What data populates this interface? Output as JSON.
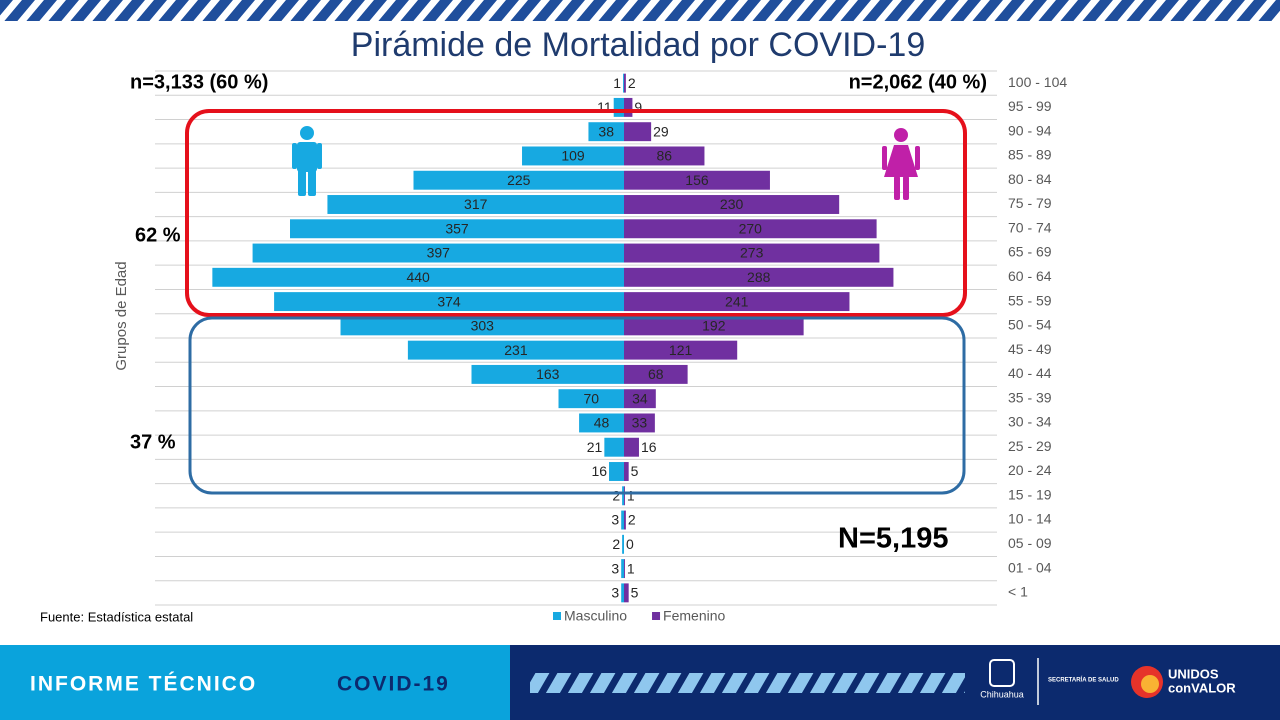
{
  "chart_data": {
    "type": "pyramid",
    "title": "Pirámide de Mortalidad  por COVID-19",
    "y_label": "Grupos de Edad",
    "categories": [
      "100 - 104",
      "95 - 99",
      "90 - 94",
      "85 - 89",
      "80 - 84",
      "75 - 79",
      "70 - 74",
      "65 - 69",
      "60 - 64",
      "55 - 59",
      "50 - 54",
      "45 - 49",
      "40 - 44",
      "35 - 39",
      "30 - 34",
      "25 - 29",
      "20 - 24",
      "15 - 19",
      "10 - 14",
      "05 - 09",
      "01 - 04",
      "< 1"
    ],
    "series": [
      {
        "name": "Masculino",
        "color": "#17a9e1",
        "side": "left",
        "values": [
          1,
          11,
          38,
          109,
          225,
          317,
          357,
          397,
          440,
          374,
          303,
          231,
          163,
          70,
          48,
          21,
          16,
          2,
          3,
          2,
          3,
          3
        ]
      },
      {
        "name": "Femenino",
        "color": "#7030a0",
        "side": "right",
        "values": [
          2,
          9,
          29,
          86,
          156,
          230,
          270,
          273,
          288,
          241,
          192,
          121,
          68,
          34,
          33,
          16,
          5,
          1,
          2,
          0,
          1,
          5
        ]
      }
    ],
    "xlim": [
      -450,
      450
    ],
    "annotations": {
      "male_total": "n=3,133 (60 %)",
      "female_total": "n=2,062 (40 %)",
      "upper_share": "62 %",
      "lower_share": "37 %",
      "grand_total": "N=5,195"
    },
    "source": "Fuente: Estadística estatal"
  },
  "footer": {
    "report": "INFORME TÉCNICO",
    "topic": "COVID-19",
    "logo_city": "Chihuahua",
    "logo_dept": "SECRETARÍA DE SALUD",
    "logo_brand_top": "UNIDOS",
    "logo_brand_bottom": "conVALOR"
  }
}
